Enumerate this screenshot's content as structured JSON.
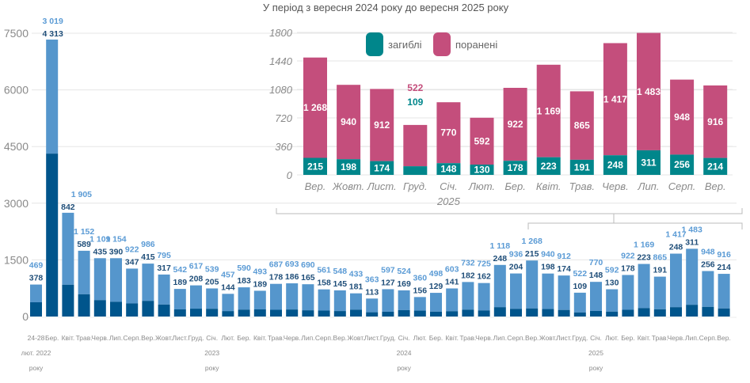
{
  "colors": {
    "killed_main": "#00558c",
    "wounded_main": "#5596cc",
    "killed_label": "#1f4e79",
    "wounded_label": "#5b9bd5",
    "killed_inset": "#00868b",
    "wounded_inset": "#c44e7c",
    "grid": "#e6e6e6",
    "bracket": "#bbbbbb"
  },
  "chart_data": [
    {
      "type": "bar",
      "stacked": true,
      "title": "",
      "xlabel": "",
      "ylabel": "",
      "ylim": [
        0,
        7500
      ],
      "yticks": [
        0,
        1500,
        3000,
        4500,
        6000,
        7500
      ],
      "grid": true,
      "categories": [
        "24-28",
        "Бер.",
        "Квіт.",
        "Трав.",
        "Черв.",
        "Лип.",
        "Серп.",
        "Вер.",
        "Жовт.",
        "Лист.",
        "Груд.",
        "Січ.",
        "Лют.",
        "Бер.",
        "Квіт.",
        "Трав.",
        "Черв.",
        "Лип.",
        "Серп.",
        "Вер.",
        "Жовт.",
        "Лист.",
        "Груд.",
        "Січ.",
        "Лют.",
        "Бер.",
        "Квіт.",
        "Трав.",
        "Черв.",
        "Лип.",
        "Серп.",
        "Вер.",
        "Жовт.",
        "Лист.",
        "Груд.",
        "Січ.",
        "Лют.",
        "Бер.",
        "Квіт.",
        "Трав.",
        "Черв.",
        "Лип.",
        "Серп.",
        "Вер."
      ],
      "year_labels": [
        {
          "index": 0,
          "lines": [
            "лют. 2022",
            "року"
          ]
        },
        {
          "index": 11,
          "lines": [
            "2023",
            "року"
          ]
        },
        {
          "index": 23,
          "lines": [
            "2024",
            "року"
          ]
        },
        {
          "index": 35,
          "lines": [
            "2025",
            "року"
          ]
        }
      ],
      "series": [
        {
          "name": "загиблі",
          "values": [
            378,
            4313,
            842,
            589,
            435,
            390,
            347,
            415,
            317,
            189,
            208,
            205,
            144,
            183,
            189,
            178,
            186,
            165,
            158,
            145,
            181,
            113,
            127,
            169,
            156,
            129,
            141,
            182,
            162,
            248,
            204,
            215,
            198,
            174,
            109,
            148,
            130,
            178,
            223,
            191,
            248,
            311,
            256,
            214
          ]
        },
        {
          "name": "поранені",
          "values": [
            469,
            3019,
            1905,
            1152,
            1109,
            1154,
            922,
            986,
            795,
            542,
            617,
            539,
            457,
            590,
            493,
            687,
            693,
            690,
            561,
            548,
            433,
            363,
            597,
            524,
            360,
            498,
            603,
            732,
            725,
            1118,
            936,
            1268,
            940,
            912,
            522,
            770,
            592,
            922,
            1169,
            865,
            1417,
            1483,
            948,
            916
          ]
        }
      ],
      "value_labels_killed": [
        "378",
        "4 313",
        "842",
        "589",
        "435",
        "390",
        "347",
        "415",
        "317",
        "189",
        "208",
        "205",
        "144",
        "183",
        "189",
        "178",
        "186",
        "165",
        "158",
        "145",
        "181",
        "113",
        "127",
        "169",
        "156",
        "129",
        "141",
        "182",
        "162",
        "248",
        "204",
        "215",
        "198",
        "174",
        "109",
        "148",
        "130",
        "178",
        "223",
        "191",
        "248",
        "311",
        "256",
        "214"
      ],
      "value_labels_wounded": [
        "469",
        "3 019",
        "1 905",
        "1 152",
        "1 109",
        "1 154",
        "922",
        "986",
        "795",
        "542",
        "617",
        "539",
        "457",
        "590",
        "493",
        "687",
        "693",
        "690",
        "561",
        "548",
        "433",
        "363",
        "597",
        "524",
        "360",
        "498",
        "603",
        "732",
        "725",
        "1 118",
        "936",
        "1 268",
        "940",
        "912",
        "522",
        "770",
        "592",
        "922",
        "1 169",
        "865",
        "1 417",
        "1 483",
        "948",
        "916"
      ]
    },
    {
      "type": "bar",
      "stacked": true,
      "title": "У період з вересня 2024 року до вересня 2025 року",
      "xlabel": "",
      "ylabel": "",
      "ylim": [
        0,
        1800
      ],
      "yticks": [
        0,
        360,
        720,
        1080,
        1440,
        1800
      ],
      "grid": true,
      "legend": {
        "placement": "top-left",
        "entries": [
          "загиблі",
          "поранені"
        ]
      },
      "categories": [
        "Вер.",
        "Жовт.",
        "Лист.",
        "Груд.",
        "Січ.",
        "Лют.",
        "Бер.",
        "Квіт.",
        "Трав.",
        "Черв.",
        "Лип.",
        "Серп.",
        "Вер."
      ],
      "year_labels": [
        {
          "index": 4,
          "lines": [
            "2025"
          ]
        }
      ],
      "series": [
        {
          "name": "загиблі",
          "values": [
            215,
            198,
            174,
            109,
            148,
            130,
            178,
            223,
            191,
            248,
            311,
            256,
            214
          ]
        },
        {
          "name": "поранені",
          "values": [
            1268,
            940,
            912,
            522,
            770,
            592,
            922,
            1169,
            865,
            1417,
            1483,
            948,
            916
          ]
        }
      ],
      "value_labels_killed": [
        "215",
        "198",
        "174",
        "109",
        "148",
        "130",
        "178",
        "223",
        "191",
        "248",
        "311",
        "256",
        "214"
      ],
      "value_labels_wounded": [
        "1 268",
        "940",
        "912",
        "522",
        "770",
        "592",
        "922",
        "1 169",
        "865",
        "1 417",
        "1 483",
        "948",
        "916"
      ],
      "outside_label_indices": [
        3
      ]
    }
  ]
}
